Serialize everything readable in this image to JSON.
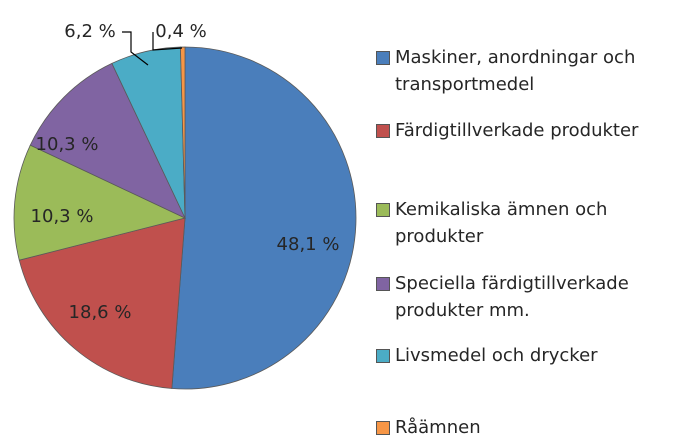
{
  "chart_data": {
    "type": "pie",
    "categories": [
      "Maskiner, anordningar och transportmedel",
      "Färdigtillverkade produkter",
      "Kemikaliska ämnen och produkter",
      "Speciella färdigtillverkade produkter mm.",
      "Livsmedel och drycker",
      "Råämnen"
    ],
    "values": [
      48.1,
      18.6,
      10.3,
      10.3,
      6.2,
      0.4
    ],
    "value_labels": [
      "48,1 %",
      "18,6 %",
      "10,3 %",
      "10,3 %",
      "6,2 %",
      "0,4 %"
    ],
    "colors": [
      "#4a7ebb",
      "#c0504d",
      "#9bbb59",
      "#8064a2",
      "#4bacc6",
      "#f79646"
    ],
    "legend": "right"
  }
}
